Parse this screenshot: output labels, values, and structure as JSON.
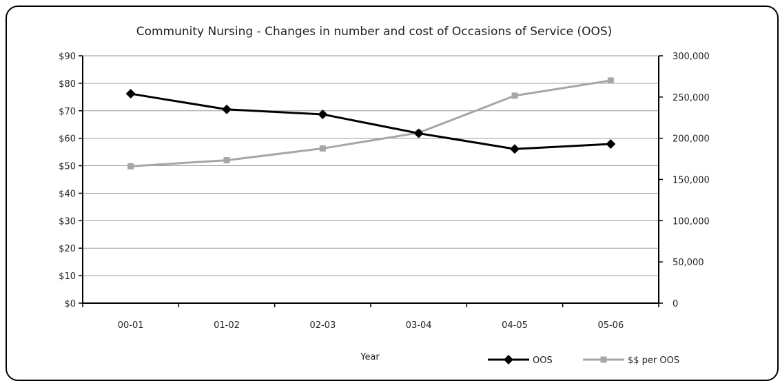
{
  "chart_data": {
    "type": "line",
    "title": "Community Nursing - Changes in number and cost of Occasions of Service (OOS)",
    "xlabel": "Year",
    "ylabel": "",
    "y2label": "",
    "categories": [
      "00-01",
      "01-02",
      "02-03",
      "03-04",
      "04-05",
      "05-06"
    ],
    "ylim": [
      0,
      90
    ],
    "y2lim": [
      0,
      300000
    ],
    "y_ticks": [
      "$0",
      "$10",
      "$20",
      "$30",
      "$40",
      "$50",
      "$60",
      "$70",
      "$80",
      "$90"
    ],
    "y2_ticks": [
      "0",
      "50,000",
      "100,000",
      "150,000",
      "200,000",
      "250,000",
      "300,000"
    ],
    "grid": true,
    "legend": "bottom-right",
    "series": [
      {
        "name": "OOS",
        "axis": "right",
        "color": "#000000",
        "marker": "diamond",
        "values": [
          254000,
          235000,
          229000,
          206000,
          187000,
          193000
        ]
      },
      {
        "name": "$$ per OOS",
        "axis": "left",
        "color": "#a6a6a6",
        "marker": "square",
        "values": [
          49.8,
          52,
          56.3,
          62,
          75.5,
          81
        ]
      }
    ]
  }
}
